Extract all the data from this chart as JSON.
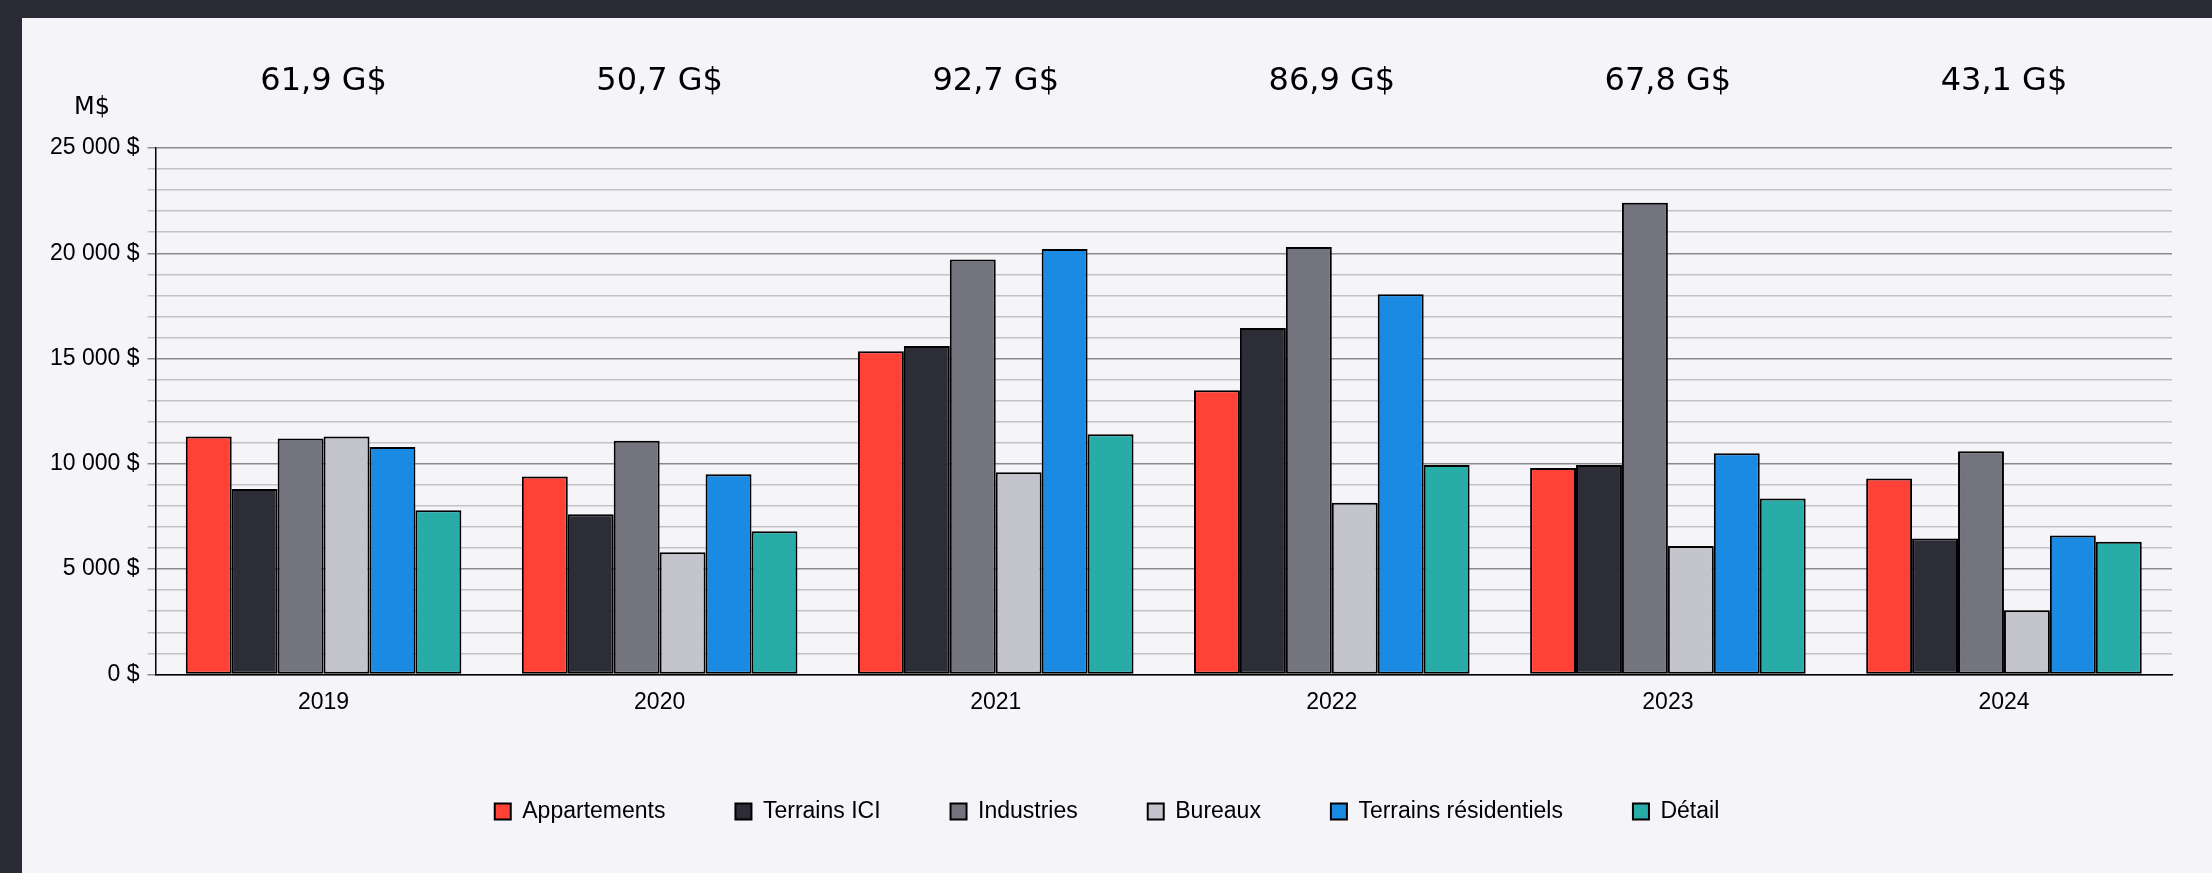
{
  "chart_data": {
    "type": "bar",
    "ylabel": "M$",
    "categories": [
      "2019",
      "2020",
      "2021",
      "2022",
      "2023",
      "2024"
    ],
    "series": [
      {
        "name": "Appartements",
        "color": "#ff4136",
        "values": [
          11300,
          9400,
          15350,
          13500,
          9800,
          9300
        ]
      },
      {
        "name": "Terrains ICI",
        "color": "#2d2d37",
        "values": [
          8800,
          7600,
          15600,
          16450,
          9950,
          6450
        ]
      },
      {
        "name": "Industries",
        "color": "#74747e",
        "values": [
          11200,
          11100,
          19700,
          20300,
          22400,
          10600
        ]
      },
      {
        "name": "Bureaux",
        "color": "#c4c4cc",
        "values": [
          11300,
          5800,
          9600,
          8150,
          6100,
          3050
        ]
      },
      {
        "name": "Terrains résidentiels",
        "color": "#1a8ae2",
        "values": [
          10800,
          9500,
          20200,
          18050,
          10500,
          6600
        ]
      },
      {
        "name": "Détail",
        "color": "#28aca8",
        "values": [
          7800,
          6800,
          11400,
          9950,
          8350,
          6300
        ]
      }
    ],
    "annotations": [
      "61,9 G$",
      "50,7 G$",
      "92,7 G$",
      "86,9 G$",
      "67,8 G$",
      "43,1 G$"
    ],
    "ylim": [
      0,
      25000
    ],
    "yticks": [
      {
        "value": 0,
        "label": "0 $"
      },
      {
        "value": 1000,
        "label": null
      },
      {
        "value": 2000,
        "label": null
      },
      {
        "value": 3000,
        "label": null
      },
      {
        "value": 4000,
        "label": null
      },
      {
        "value": 5000,
        "label": "5 000 $"
      },
      {
        "value": 6000,
        "label": null
      },
      {
        "value": 7000,
        "label": null
      },
      {
        "value": 8000,
        "label": null
      },
      {
        "value": 9000,
        "label": null
      },
      {
        "value": 10000,
        "label": "10 000 $"
      },
      {
        "value": 11000,
        "label": null
      },
      {
        "value": 12000,
        "label": null
      },
      {
        "value": 13000,
        "label": null
      },
      {
        "value": 14000,
        "label": null
      },
      {
        "value": 15000,
        "label": "15 000 $"
      },
      {
        "value": 16000,
        "label": null
      },
      {
        "value": 17000,
        "label": null
      },
      {
        "value": 18000,
        "label": null
      },
      {
        "value": 19000,
        "label": null
      },
      {
        "value": 20000,
        "label": "20 000 $"
      },
      {
        "value": 21000,
        "label": null
      },
      {
        "value": 22000,
        "label": null
      },
      {
        "value": 23000,
        "label": null
      },
      {
        "value": 24000,
        "label": null
      },
      {
        "value": 25000,
        "label": "25 000 $"
      }
    ],
    "grid": true,
    "legend": "bottom"
  }
}
